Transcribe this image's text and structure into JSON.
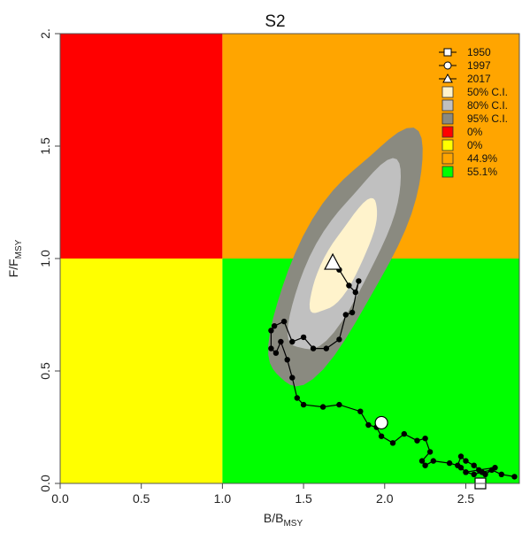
{
  "chart_data": {
    "type": "scatter",
    "title": "S2",
    "xlabel": "B/B",
    "xlabel_sub": "MSY",
    "ylabel": "F/F",
    "ylabel_sub": "MSY",
    "xlim": [
      0,
      2.83
    ],
    "ylim": [
      0,
      2.0
    ],
    "x_ticks": [
      "0.0",
      "0.5",
      "1.0",
      "1.5",
      "2.0",
      "2.5"
    ],
    "y_ticks": [
      "0.0",
      "0.5",
      "1.0",
      "1.5",
      "2."
    ],
    "quadrants": {
      "red": "#ff0000",
      "yellow": "#ffff00",
      "orange": "#ffa500",
      "green": "#00ff00"
    },
    "ci_colors": {
      "ci50": "#fff3cc",
      "ci80": "#c0c0c0",
      "ci95": "#8a8a80"
    },
    "trajectory": {
      "x": [
        2.8,
        2.72,
        2.66,
        2.6,
        2.55,
        2.5,
        2.47,
        2.5,
        2.58,
        2.68,
        2.62,
        2.55,
        2.5,
        2.47,
        2.45,
        2.4,
        2.3,
        2.25,
        2.23,
        2.28,
        2.25,
        2.2,
        2.12,
        2.05,
        1.98,
        1.95,
        1.9,
        1.85,
        1.72,
        1.62,
        1.5,
        1.46,
        1.43,
        1.4,
        1.36,
        1.33,
        1.3,
        1.3,
        1.32,
        1.38,
        1.43,
        1.5,
        1.56,
        1.64,
        1.72,
        1.76,
        1.8,
        1.84,
        1.82,
        1.78,
        1.72,
        1.68
      ],
      "y": [
        0.03,
        0.04,
        0.06,
        0.05,
        0.04,
        0.05,
        0.07,
        0.05,
        0.06,
        0.07,
        0.04,
        0.08,
        0.1,
        0.12,
        0.08,
        0.09,
        0.1,
        0.08,
        0.1,
        0.14,
        0.2,
        0.19,
        0.22,
        0.18,
        0.21,
        0.25,
        0.26,
        0.32,
        0.35,
        0.34,
        0.35,
        0.38,
        0.47,
        0.55,
        0.63,
        0.58,
        0.6,
        0.68,
        0.7,
        0.72,
        0.63,
        0.65,
        0.6,
        0.6,
        0.64,
        0.75,
        0.76,
        0.9,
        0.85,
        0.88,
        0.95,
        0.98
      ]
    },
    "markers": [
      {
        "label": "1950",
        "symbol": "square",
        "x": 2.59,
        "y": 0.0
      },
      {
        "label": "1997",
        "symbol": "circle",
        "x": 1.98,
        "y": 0.27
      },
      {
        "label": "2017",
        "symbol": "triangle",
        "x": 1.68,
        "y": 0.98
      }
    ],
    "ci_center": {
      "x": 1.75,
      "y": 1.0
    },
    "legend": {
      "position": "top-right",
      "entries": [
        {
          "label": "1950",
          "symbol": "line-square"
        },
        {
          "label": "1997",
          "symbol": "line-circle"
        },
        {
          "label": "2017",
          "symbol": "line-triangle"
        },
        {
          "label": "50% C.I.",
          "symbol": "box",
          "color": "#fff3cc"
        },
        {
          "label": "80% C.I.",
          "symbol": "box",
          "color": "#c0c0c0"
        },
        {
          "label": "95% C.I.",
          "symbol": "box",
          "color": "#8a8a80"
        },
        {
          "label": "0%",
          "symbol": "box",
          "color": "#ff0000"
        },
        {
          "label": "0%",
          "symbol": "box",
          "color": "#ffff00"
        },
        {
          "label": "44.9%",
          "symbol": "box",
          "color": "#ffa500"
        },
        {
          "label": "55.1%",
          "symbol": "box",
          "color": "#00ff00"
        }
      ]
    }
  }
}
